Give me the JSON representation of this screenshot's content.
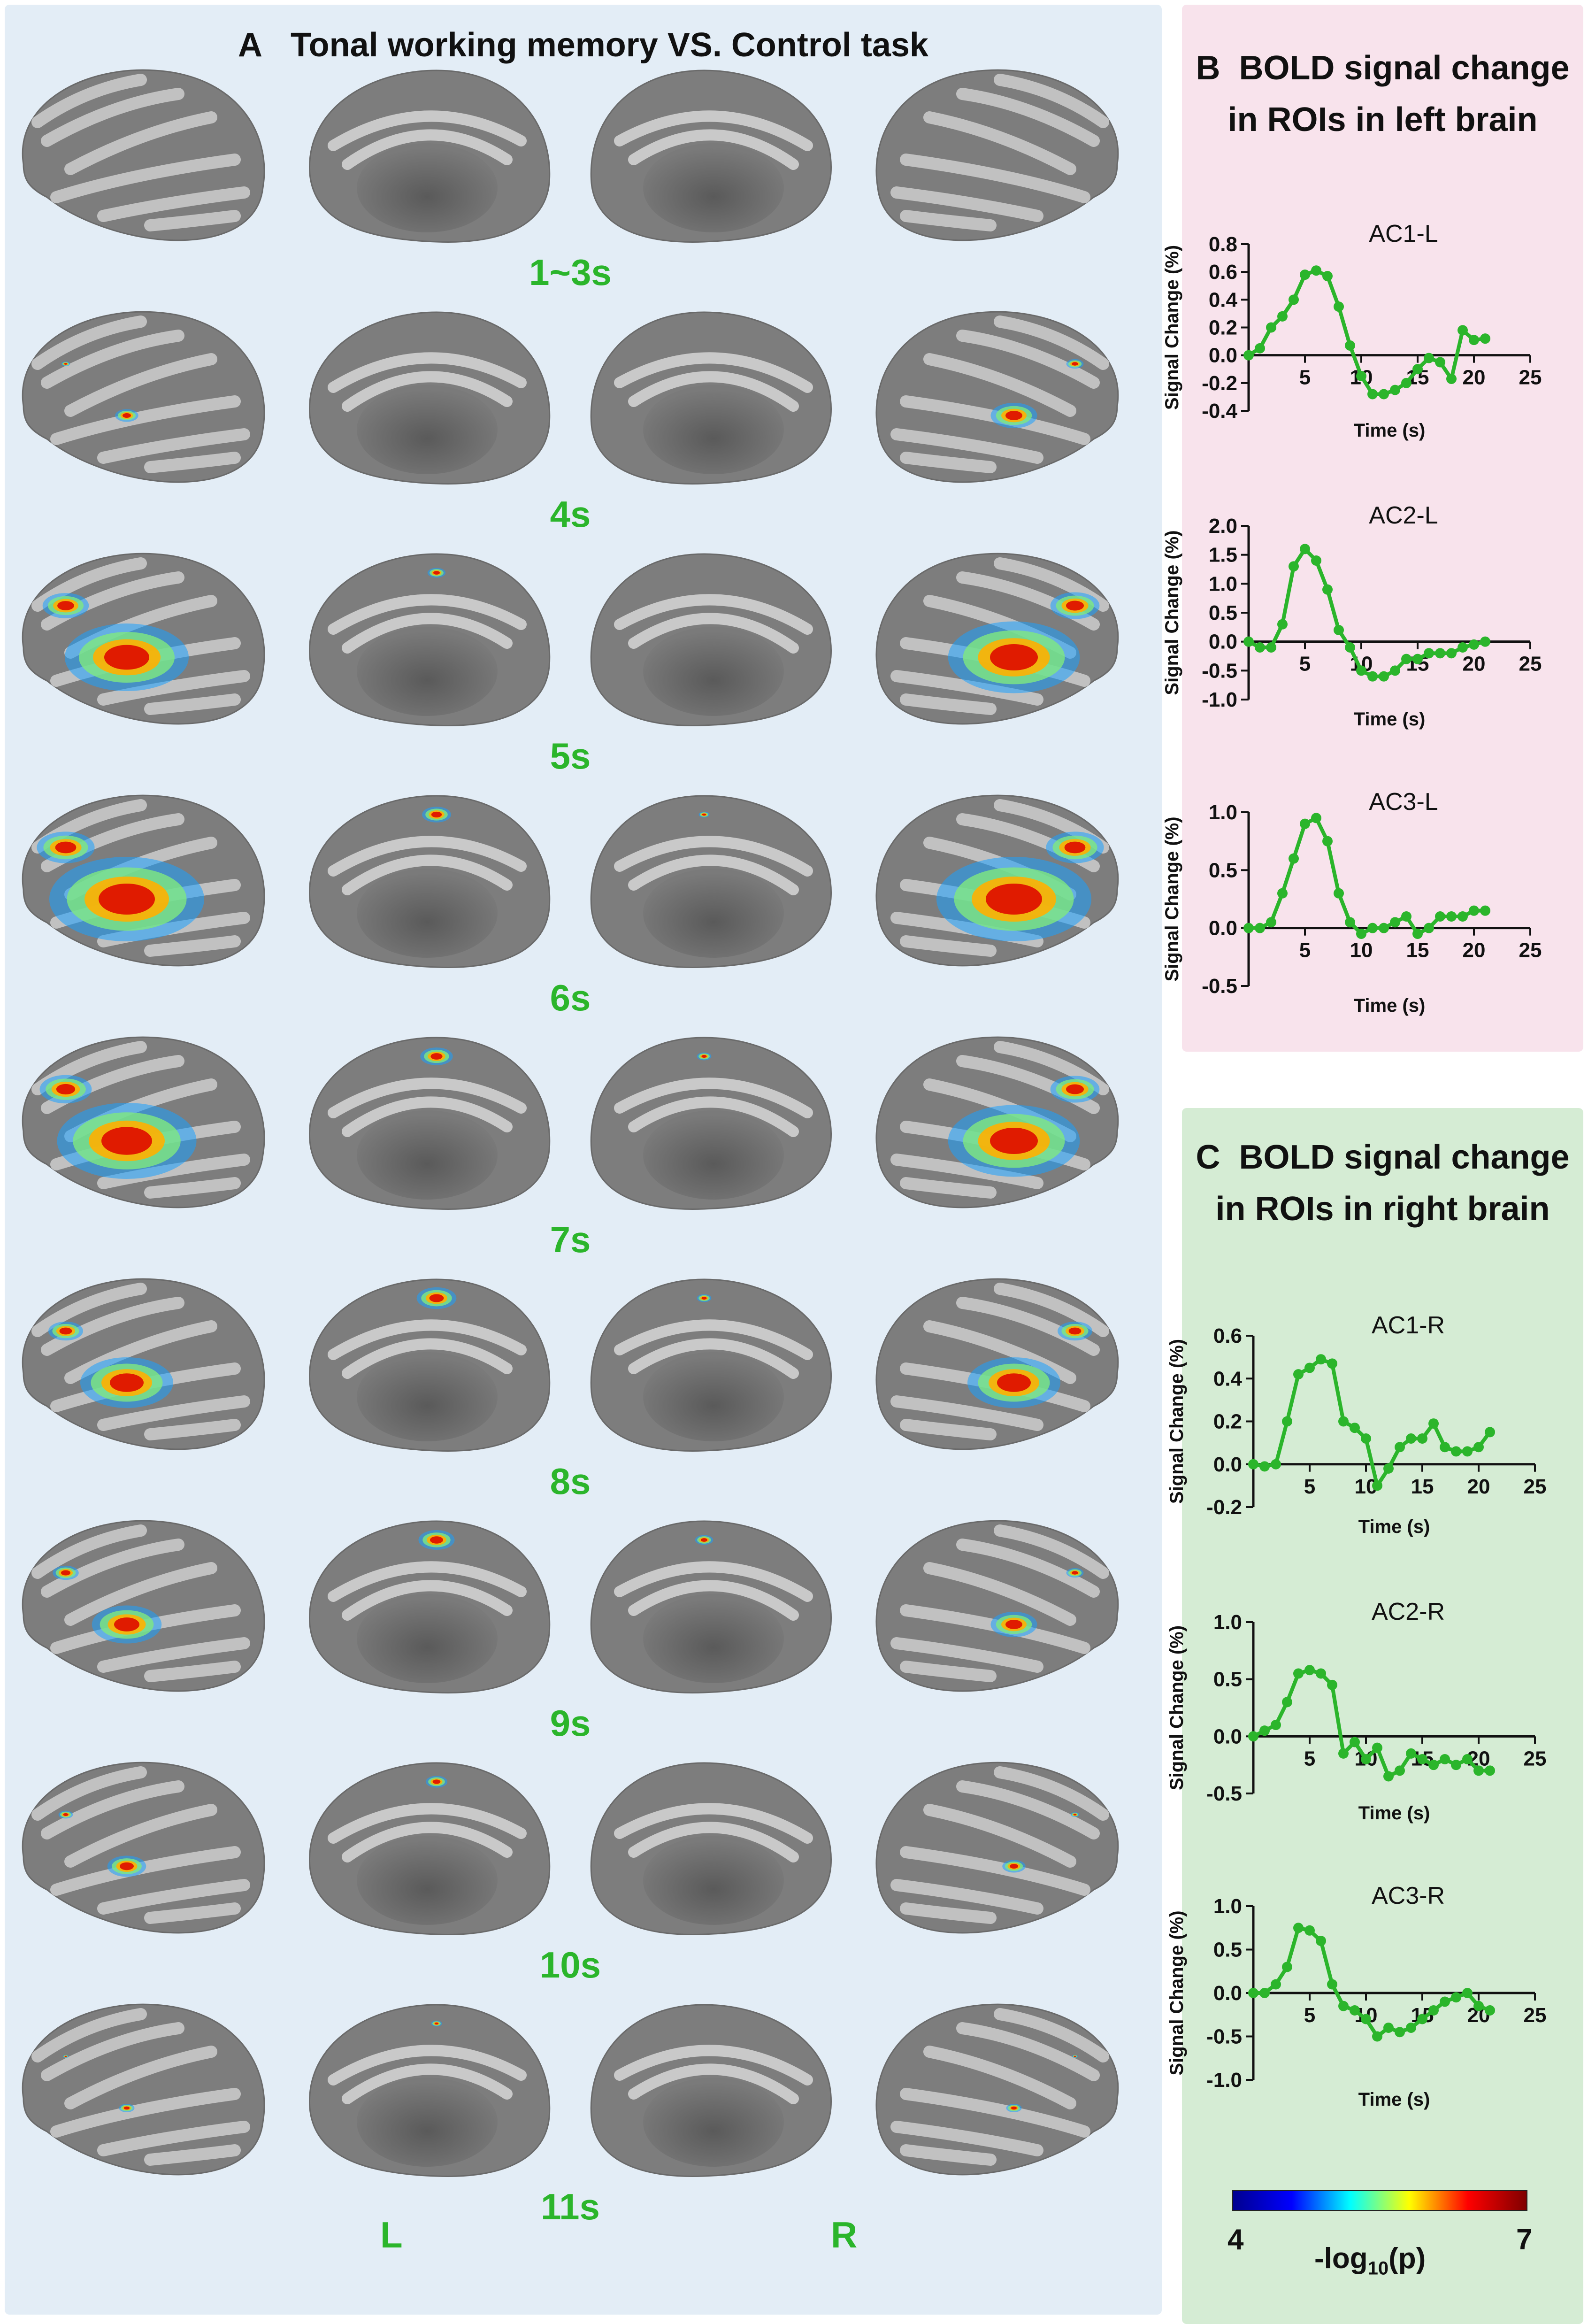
{
  "panel_a": {
    "letter": "A",
    "title": "Tonal working memory  VS.  Control task",
    "time_labels": [
      "1~3s",
      "4s",
      "5s",
      "6s",
      "7s",
      "8s",
      "9s",
      "10s",
      "11s"
    ],
    "hemisphere_left": "L",
    "hemisphere_right": "R"
  },
  "panel_b": {
    "letter": "B",
    "title_line1": "BOLD signal change",
    "title_line2": "in ROIs in left brain"
  },
  "panel_c": {
    "letter": "C",
    "title_line1": "BOLD signal change",
    "title_line2": "in ROIs in right brain"
  },
  "colorbar": {
    "min_label": "4",
    "max_label": "7",
    "label_prefix": "-log",
    "label_sub": "10",
    "label_suffix": "(p)",
    "colors": [
      "#00008f",
      "#0000ff",
      "#00ffff",
      "#ffff00",
      "#ff0000",
      "#7f0000"
    ]
  },
  "colors": {
    "line": "#2bb52b",
    "time_label": "#2bb52b"
  },
  "chart_data": [
    {
      "type": "line",
      "title": "AC1-L",
      "xlabel": "Time (s)",
      "ylabel": "Signal Change (%)",
      "xlim": [
        0,
        25
      ],
      "ylim": [
        -0.4,
        0.8
      ],
      "xticks": [
        5,
        10,
        15,
        20,
        25
      ],
      "yticks": [
        -0.4,
        -0.2,
        0.0,
        0.2,
        0.4,
        0.6,
        0.8
      ],
      "ytick_labels": [
        "-0.4",
        "-0.2",
        "0.0",
        "0.2",
        "0.4",
        "0.6",
        "0.8"
      ],
      "x": [
        0,
        1,
        2,
        3,
        4,
        5,
        6,
        7,
        8,
        9,
        10,
        11,
        12,
        13,
        14,
        15,
        16,
        17,
        18,
        19,
        20,
        21
      ],
      "y": [
        0.0,
        0.05,
        0.2,
        0.28,
        0.4,
        0.58,
        0.61,
        0.57,
        0.35,
        0.07,
        -0.15,
        -0.28,
        -0.28,
        -0.25,
        -0.2,
        -0.1,
        -0.02,
        -0.05,
        -0.17,
        0.18,
        0.11,
        0.12
      ]
    },
    {
      "type": "line",
      "title": "AC2-L",
      "xlabel": "Time (s)",
      "ylabel": "Signal Change (%)",
      "xlim": [
        0,
        25
      ],
      "ylim": [
        -1.0,
        2.0
      ],
      "xticks": [
        5,
        10,
        15,
        20,
        25
      ],
      "yticks": [
        -1.0,
        -0.5,
        0.0,
        0.5,
        1.0,
        1.5,
        2.0
      ],
      "ytick_labels": [
        "-1.0",
        "-0.5",
        "0.0",
        "0.5",
        "1.0",
        "1.5",
        "2.0"
      ],
      "x": [
        0,
        1,
        2,
        3,
        4,
        5,
        6,
        7,
        8,
        9,
        10,
        11,
        12,
        13,
        14,
        15,
        16,
        17,
        18,
        19,
        20,
        21
      ],
      "y": [
        0.0,
        -0.1,
        -0.1,
        0.3,
        1.3,
        1.6,
        1.4,
        0.9,
        0.2,
        -0.1,
        -0.5,
        -0.6,
        -0.6,
        -0.5,
        -0.3,
        -0.3,
        -0.2,
        -0.2,
        -0.2,
        -0.1,
        -0.05,
        0.0
      ]
    },
    {
      "type": "line",
      "title": "AC3-L",
      "xlabel": "Time (s)",
      "ylabel": "Signal Change (%)",
      "xlim": [
        0,
        25
      ],
      "ylim": [
        -0.5,
        1.0
      ],
      "xticks": [
        5,
        10,
        15,
        20,
        25
      ],
      "yticks": [
        -0.5,
        0.0,
        0.5,
        1.0
      ],
      "ytick_labels": [
        "-0.5",
        "0.0",
        "0.5",
        "1.0"
      ],
      "x": [
        0,
        1,
        2,
        3,
        4,
        5,
        6,
        7,
        8,
        9,
        10,
        11,
        12,
        13,
        14,
        15,
        16,
        17,
        18,
        19,
        20,
        21
      ],
      "y": [
        0.0,
        0.0,
        0.05,
        0.3,
        0.6,
        0.9,
        0.95,
        0.75,
        0.3,
        0.05,
        -0.05,
        0.0,
        0.0,
        0.05,
        0.1,
        -0.05,
        0.0,
        0.1,
        0.1,
        0.1,
        0.15,
        0.15
      ]
    },
    {
      "type": "line",
      "title": "AC1-R",
      "xlabel": "Time (s)",
      "ylabel": "Signal Change (%)",
      "xlim": [
        0,
        25
      ],
      "ylim": [
        -0.2,
        0.6
      ],
      "xticks": [
        5,
        10,
        15,
        20,
        25
      ],
      "yticks": [
        -0.2,
        0.0,
        0.2,
        0.4,
        0.6
      ],
      "ytick_labels": [
        "-0.2",
        "0.0",
        "0.2",
        "0.4",
        "0.6"
      ],
      "x": [
        0,
        1,
        2,
        3,
        4,
        5,
        6,
        7,
        8,
        9,
        10,
        11,
        12,
        13,
        14,
        15,
        16,
        17,
        18,
        19,
        20,
        21
      ],
      "y": [
        0.0,
        -0.01,
        0.0,
        0.2,
        0.42,
        0.45,
        0.49,
        0.47,
        0.2,
        0.17,
        0.12,
        -0.1,
        -0.02,
        0.08,
        0.12,
        0.12,
        0.19,
        0.08,
        0.06,
        0.06,
        0.08,
        0.15
      ]
    },
    {
      "type": "line",
      "title": "AC2-R",
      "xlabel": "Time (s)",
      "ylabel": "Signal Change (%)",
      "xlim": [
        0,
        25
      ],
      "ylim": [
        -0.5,
        1.0
      ],
      "xticks": [
        5,
        10,
        15,
        20,
        25
      ],
      "yticks": [
        -0.5,
        0.0,
        0.5,
        1.0
      ],
      "ytick_labels": [
        "-0.5",
        "0.0",
        "0.5",
        "1.0"
      ],
      "x": [
        0,
        1,
        2,
        3,
        4,
        5,
        6,
        7,
        8,
        9,
        10,
        11,
        12,
        13,
        14,
        15,
        16,
        17,
        18,
        19,
        20,
        21
      ],
      "y": [
        0.0,
        0.05,
        0.1,
        0.3,
        0.55,
        0.58,
        0.55,
        0.45,
        -0.15,
        -0.05,
        -0.2,
        -0.1,
        -0.35,
        -0.3,
        -0.15,
        -0.2,
        -0.25,
        -0.2,
        -0.25,
        -0.2,
        -0.3,
        -0.3
      ]
    },
    {
      "type": "line",
      "title": "AC3-R",
      "xlabel": "Time (s)",
      "ylabel": "Signal Change (%)",
      "xlim": [
        0,
        25
      ],
      "ylim": [
        -1.0,
        1.0
      ],
      "xticks": [
        5,
        10,
        15,
        20,
        25
      ],
      "yticks": [
        -1.0,
        -0.5,
        0.0,
        0.5,
        1.0
      ],
      "ytick_labels": [
        "-1.0",
        "-0.5",
        "0.0",
        "0.5",
        "1.0"
      ],
      "x": [
        0,
        1,
        2,
        3,
        4,
        5,
        6,
        7,
        8,
        9,
        10,
        11,
        12,
        13,
        14,
        15,
        16,
        17,
        18,
        19,
        20,
        21
      ],
      "y": [
        0.0,
        0.0,
        0.1,
        0.3,
        0.75,
        0.72,
        0.6,
        0.1,
        -0.15,
        -0.2,
        -0.3,
        -0.5,
        -0.4,
        -0.45,
        -0.4,
        -0.3,
        -0.2,
        -0.1,
        -0.05,
        0.0,
        -0.15,
        -0.2
      ]
    }
  ]
}
